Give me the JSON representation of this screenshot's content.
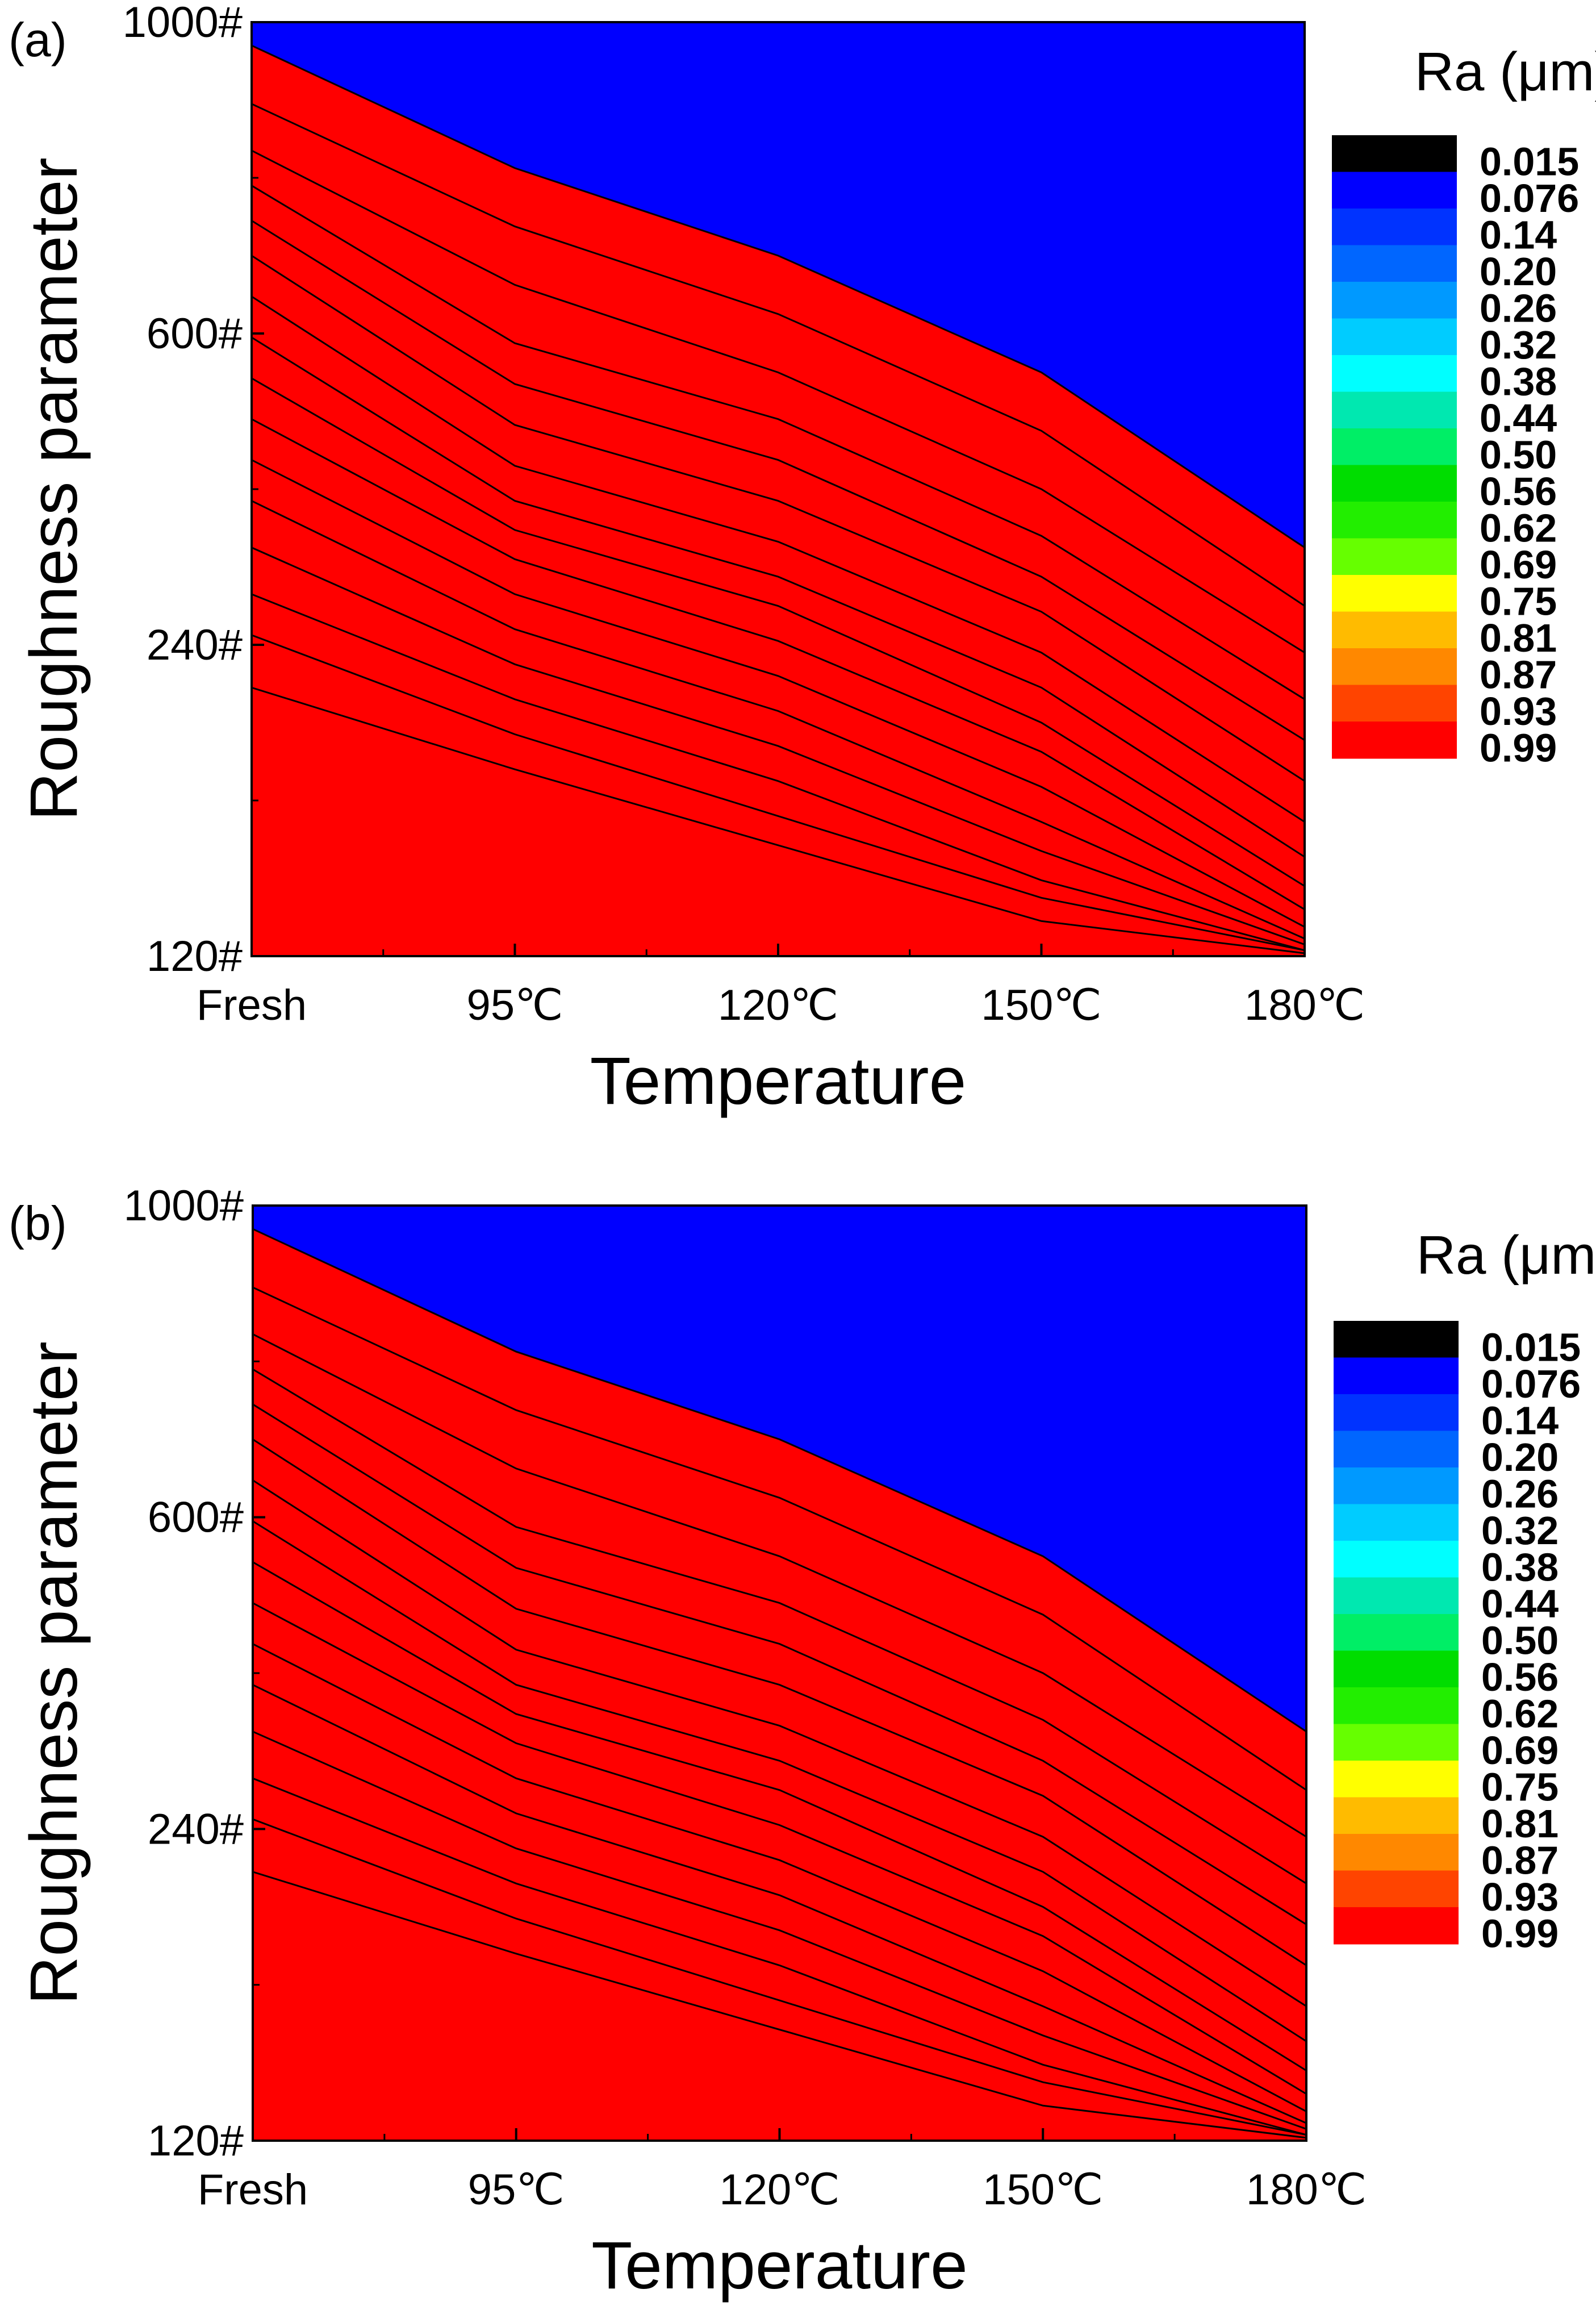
{
  "chart_data": [
    {
      "type": "contour",
      "panel_label": "(a)",
      "xlabel": "Temperature",
      "ylabel": "Roughness parameter",
      "x_categories": [
        "Fresh",
        "95℃",
        "120℃",
        "150℃",
        "180℃"
      ],
      "y_categories": [
        "120#",
        "240#",
        "600#",
        "1000#"
      ],
      "colorbar_title": "Ra (μm)",
      "contour_levels": [
        "0.015",
        "0.076",
        "0.14",
        "0.20",
        "0.26",
        "0.32",
        "0.38",
        "0.44",
        "0.50",
        "0.56",
        "0.62",
        "0.69",
        "0.75",
        "0.81",
        "0.87",
        "0.93",
        "0.99"
      ],
      "ra_level_index_boundaries": [
        [
          15.6,
          13.5,
          12.0,
          10.0,
          7.0
        ],
        [
          14.6,
          12.5,
          11.0,
          9.0,
          6.0
        ],
        [
          13.8,
          11.5,
          10.0,
          8.0,
          5.2
        ],
        [
          13.2,
          10.5,
          9.2,
          7.2,
          4.4
        ],
        [
          12.6,
          9.8,
          8.5,
          6.5,
          3.7
        ],
        [
          12.0,
          9.1,
          7.8,
          5.9,
          3.0
        ],
        [
          11.3,
          8.4,
          7.1,
          5.2,
          2.3
        ],
        [
          10.6,
          7.8,
          6.5,
          4.6,
          1.7
        ],
        [
          9.9,
          7.3,
          6.0,
          4.0,
          1.2
        ],
        [
          9.2,
          6.8,
          5.4,
          3.5,
          0.8
        ],
        [
          8.5,
          6.2,
          4.8,
          2.9,
          0.5
        ],
        [
          7.8,
          5.6,
          4.2,
          2.3,
          0.3
        ],
        [
          7.0,
          5.0,
          3.6,
          1.8,
          0.2
        ],
        [
          6.2,
          4.4,
          3.0,
          1.3,
          0.1
        ],
        [
          5.5,
          3.8,
          2.4,
          1.0,
          0.1
        ],
        [
          4.6,
          3.2,
          1.9,
          0.6,
          0.05
        ]
      ],
      "ra_top_right_min": 0.015
    },
    {
      "type": "contour",
      "panel_label": "(b)",
      "xlabel": "Temperature",
      "ylabel": "Roughness parameter",
      "x_categories": [
        "Fresh",
        "95℃",
        "120℃",
        "150℃",
        "180℃"
      ],
      "y_categories": [
        "120#",
        "240#",
        "600#",
        "1000#"
      ],
      "colorbar_title": "Ra (μm)",
      "contour_levels": [
        "0.015",
        "0.076",
        "0.14",
        "0.20",
        "0.26",
        "0.32",
        "0.38",
        "0.44",
        "0.50",
        "0.56",
        "0.62",
        "0.69",
        "0.75",
        "0.81",
        "0.87",
        "0.93",
        "0.99"
      ],
      "ra_level_index_boundaries": [
        [
          15.6,
          13.5,
          12.0,
          10.0,
          7.0
        ],
        [
          14.6,
          12.5,
          11.0,
          9.0,
          6.0
        ],
        [
          13.8,
          11.5,
          10.0,
          8.0,
          5.2
        ],
        [
          13.2,
          10.5,
          9.2,
          7.2,
          4.4
        ],
        [
          12.6,
          9.8,
          8.5,
          6.5,
          3.7
        ],
        [
          12.0,
          9.1,
          7.8,
          5.9,
          3.0
        ],
        [
          11.3,
          8.4,
          7.1,
          5.2,
          2.3
        ],
        [
          10.6,
          7.8,
          6.5,
          4.6,
          1.7
        ],
        [
          9.9,
          7.3,
          6.0,
          4.0,
          1.2
        ],
        [
          9.2,
          6.8,
          5.4,
          3.5,
          0.8
        ],
        [
          8.5,
          6.2,
          4.8,
          2.9,
          0.5
        ],
        [
          7.8,
          5.6,
          4.2,
          2.3,
          0.3
        ],
        [
          7.0,
          5.0,
          3.6,
          1.8,
          0.2
        ],
        [
          6.2,
          4.4,
          3.0,
          1.3,
          0.1
        ],
        [
          5.5,
          3.8,
          2.4,
          1.0,
          0.1
        ],
        [
          4.6,
          3.2,
          1.9,
          0.6,
          0.05
        ]
      ],
      "ra_top_right_min": 0.015
    }
  ],
  "colors": {
    "levels": [
      "#000000",
      "#0000ff",
      "#0033ff",
      "#0066ff",
      "#0099ff",
      "#00ccff",
      "#00ffff",
      "#00e8b0",
      "#00ee66",
      "#00dd00",
      "#22ee00",
      "#66ff00",
      "#ffff00",
      "#ffbb00",
      "#ff8800",
      "#ff4400",
      "#ff0000"
    ],
    "line": "#000000"
  }
}
